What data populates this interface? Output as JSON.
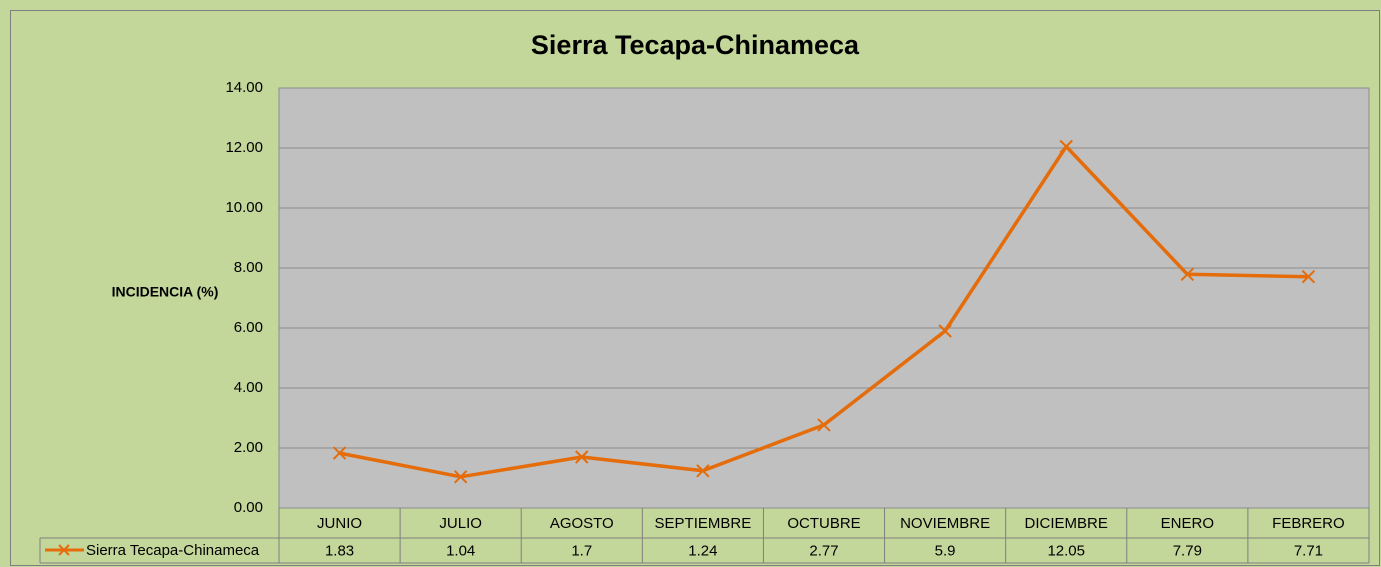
{
  "chart_data": {
    "type": "line",
    "title": "Sierra Tecapa-Chinameca",
    "y_label": "INCIDENCIA (%)",
    "categories": [
      "JUNIO",
      "JULIO",
      "AGOSTO",
      "SEPTIEMBRE",
      "OCTUBRE",
      "NOVIEMBRE",
      "DICIEMBRE",
      "ENERO",
      "FEBRERO"
    ],
    "series": [
      {
        "name": "Sierra Tecapa-Chinameca",
        "color": "#e46c0a",
        "values": [
          1.83,
          1.04,
          1.7,
          1.24,
          2.77,
          5.9,
          12.05,
          7.79,
          7.71
        ]
      }
    ],
    "ylim": [
      0,
      14
    ],
    "yticks": [
      {
        "value": 0,
        "label": "0.00"
      },
      {
        "value": 2,
        "label": "2.00"
      },
      {
        "value": 4,
        "label": "4.00"
      },
      {
        "value": 6,
        "label": "6.00"
      },
      {
        "value": 8,
        "label": "8.00"
      },
      {
        "value": 10,
        "label": "10.00"
      },
      {
        "value": 12,
        "label": "12.00"
      },
      {
        "value": 14,
        "label": "14.00"
      }
    ],
    "grid": true,
    "data_table": true
  }
}
